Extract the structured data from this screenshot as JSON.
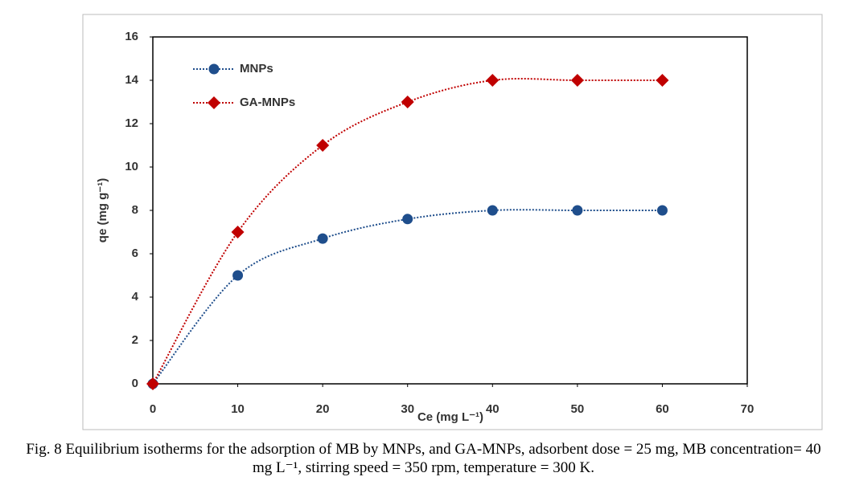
{
  "chart_data": {
    "type": "line",
    "xlabel": "Ce (mg L⁻¹)",
    "ylabel": "qe (mg g⁻¹)",
    "caption": "Fig. 8 Equilibrium isotherms for the adsorption of MB by MNPs, and GA-MNPs, adsorbent dose = 25 mg, MB concentration= 40 mg L⁻¹, stirring speed = 350 rpm, temperature = 300 K.",
    "x": [
      0,
      10,
      20,
      30,
      40,
      50,
      60
    ],
    "series": [
      {
        "name": "MNPs",
        "color": "#1f4e8c",
        "marker": "circle",
        "values": [
          0,
          5,
          6.7,
          7.6,
          8,
          8,
          8
        ]
      },
      {
        "name": "GA-MNPs",
        "color": "#c00000",
        "marker": "diamond",
        "values": [
          0,
          7,
          11,
          13,
          14,
          14,
          14
        ]
      }
    ],
    "xlim": [
      0,
      70
    ],
    "xticks": [
      0,
      10,
      20,
      30,
      40,
      50,
      60,
      70
    ],
    "ylim": [
      0,
      16
    ],
    "yticks": [
      0,
      2,
      4,
      6,
      8,
      10,
      12,
      14,
      16
    ],
    "grid": false,
    "smooth": true,
    "legend": "upper left"
  }
}
